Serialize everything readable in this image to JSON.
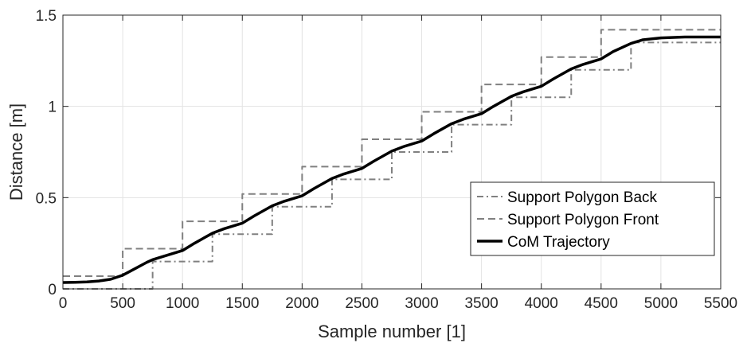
{
  "chart_data": {
    "type": "line",
    "xlabel": "Sample number [1]",
    "ylabel": "Distance [m]",
    "xlim": [
      0,
      5500
    ],
    "ylim": [
      0,
      1.5
    ],
    "x_ticks": [
      0,
      500,
      1000,
      1500,
      2000,
      2500,
      3000,
      3500,
      4000,
      4500,
      5000,
      5500
    ],
    "y_ticks": [
      0,
      0.5,
      1,
      1.5
    ],
    "x_tick_labels": [
      "0",
      "500",
      "1000",
      "1500",
      "2000",
      "2500",
      "3000",
      "3500",
      "4000",
      "4500",
      "5000",
      "5500"
    ],
    "y_tick_labels": [
      "0",
      "0.5",
      "1",
      "1.5"
    ],
    "grid": true,
    "legend_position": "bottom-right",
    "series": [
      {
        "name": "Support Polygon Back",
        "style": "dash-dot",
        "color": "#808080",
        "x": [
          0,
          750,
          750,
          1250,
          1250,
          1750,
          1750,
          2250,
          2250,
          2750,
          2750,
          3250,
          3250,
          3750,
          3750,
          4250,
          4250,
          4750,
          4750,
          5500
        ],
        "y": [
          0,
          0,
          0.15,
          0.15,
          0.3,
          0.3,
          0.45,
          0.45,
          0.6,
          0.6,
          0.75,
          0.75,
          0.9,
          0.9,
          1.05,
          1.05,
          1.2,
          1.2,
          1.35,
          1.35
        ]
      },
      {
        "name": "Support Polygon Front",
        "style": "dashed",
        "color": "#808080",
        "x": [
          0,
          500,
          500,
          1000,
          1000,
          1500,
          1500,
          2000,
          2000,
          2500,
          2500,
          3000,
          3000,
          3500,
          3500,
          4000,
          4000,
          4500,
          4500,
          5500
        ],
        "y": [
          0.07,
          0.07,
          0.22,
          0.22,
          0.37,
          0.37,
          0.52,
          0.52,
          0.67,
          0.67,
          0.82,
          0.82,
          0.97,
          0.97,
          1.12,
          1.12,
          1.27,
          1.27,
          1.42,
          1.42
        ]
      },
      {
        "name": "CoM Trajectory",
        "style": "solid",
        "color": "#000000",
        "x": [
          0,
          100,
          200,
          300,
          400,
          500,
          600,
          700,
          750,
          850,
          1000,
          1100,
          1250,
          1350,
          1500,
          1600,
          1750,
          1850,
          2000,
          2100,
          2250,
          2350,
          2500,
          2600,
          2750,
          2850,
          3000,
          3100,
          3250,
          3350,
          3500,
          3600,
          3750,
          3850,
          4000,
          4100,
          4250,
          4350,
          4500,
          4600,
          4750,
          4850,
          5000,
          5200,
          5500
        ],
        "y": [
          0.035,
          0.036,
          0.038,
          0.043,
          0.053,
          0.075,
          0.11,
          0.145,
          0.16,
          0.18,
          0.21,
          0.25,
          0.305,
          0.33,
          0.36,
          0.4,
          0.455,
          0.48,
          0.51,
          0.55,
          0.605,
          0.63,
          0.66,
          0.7,
          0.755,
          0.78,
          0.81,
          0.85,
          0.905,
          0.93,
          0.96,
          1.0,
          1.055,
          1.08,
          1.11,
          1.15,
          1.205,
          1.23,
          1.26,
          1.3,
          1.345,
          1.365,
          1.375,
          1.38,
          1.38
        ]
      }
    ]
  }
}
